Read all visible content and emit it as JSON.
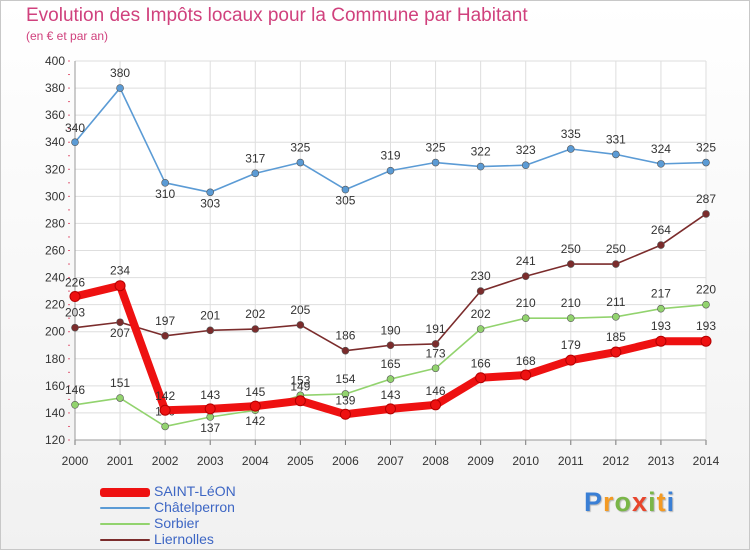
{
  "header": {
    "title": "Evolution des Impôts locaux pour la Commune par Habitant",
    "subtitle": "(en € et par an)"
  },
  "logo": {
    "text": "Proxiti",
    "letter_colors": [
      "#3a7fd5",
      "#f39a23",
      "#7ab648",
      "#e8452c",
      "#7ab648",
      "#f39a23",
      "#3a7fd5"
    ]
  },
  "chart_data": {
    "type": "line",
    "title": "Evolution des Impôts locaux pour la Commune par Habitant",
    "subtitle": "(en € et par an)",
    "x": [
      2000,
      2001,
      2002,
      2003,
      2004,
      2005,
      2006,
      2007,
      2008,
      2009,
      2010,
      2011,
      2012,
      2013,
      2014
    ],
    "ylim": [
      120,
      400
    ],
    "yticks": [
      120,
      140,
      160,
      180,
      200,
      220,
      240,
      260,
      280,
      300,
      320,
      340,
      360,
      380,
      400
    ],
    "grid": true,
    "legend": "bottom-left",
    "series": [
      {
        "name": "SAINT-LéON",
        "color": "#ee1111",
        "values": [
          226,
          234,
          142,
          143,
          145,
          149,
          139,
          143,
          146,
          166,
          168,
          179,
          185,
          193,
          193
        ]
      },
      {
        "name": "Châtelperron",
        "color": "#5b9bd5",
        "values": [
          340,
          380,
          310,
          303,
          317,
          325,
          305,
          319,
          325,
          322,
          323,
          335,
          331,
          324,
          325
        ]
      },
      {
        "name": "Sorbier",
        "color": "#92d36e",
        "values": [
          146,
          151,
          130,
          137,
          142,
          153,
          154,
          165,
          173,
          202,
          210,
          210,
          211,
          217,
          220
        ]
      },
      {
        "name": "Liernolles",
        "color": "#7b2c2c",
        "values": [
          203,
          207,
          197,
          201,
          202,
          205,
          186,
          190,
          191,
          230,
          241,
          250,
          250,
          264,
          287
        ]
      }
    ]
  }
}
